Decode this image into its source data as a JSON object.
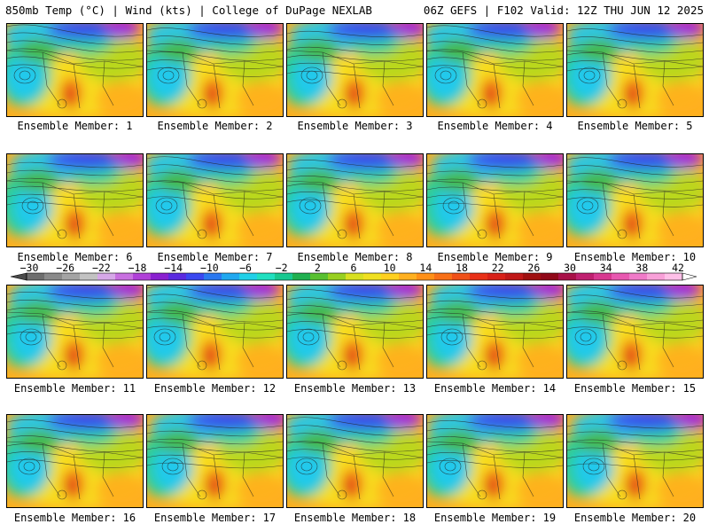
{
  "header": {
    "left_title": "850mb Temp (°C) | Wind (kts) | College of DuPage NEXLAB",
    "right_title": "06Z GEFS | F102 Valid: 12Z THU JUN 12 2025"
  },
  "colorbar": {
    "tick_labels": [
      "−30",
      "−26",
      "−22",
      "−18",
      "−14",
      "−10",
      "−6",
      "−2",
      "2",
      "6",
      "10",
      "14",
      "18",
      "22",
      "26",
      "30",
      "34",
      "38",
      "42"
    ],
    "segment_colors": [
      "#6e6e6e",
      "#8a8a8a",
      "#a4a4a4",
      "#c2c2c2",
      "#d6a8e8",
      "#c870e0",
      "#b040d8",
      "#8a20d0",
      "#5a2ae0",
      "#3a48f0",
      "#2a78f0",
      "#20a8f0",
      "#20d0e8",
      "#20e0c0",
      "#18c890",
      "#20b050",
      "#58c030",
      "#98d020",
      "#d8e020",
      "#f0e020",
      "#ffd020",
      "#ffb020",
      "#ff9018",
      "#f87018",
      "#f05018",
      "#e83018",
      "#d82018",
      "#c01818",
      "#a01010",
      "#900818",
      "#a81048",
      "#c02070",
      "#d83890",
      "#e858b0",
      "#f07ac8",
      "#f8a0d8",
      "#ffc0e8"
    ]
  },
  "map_colors": {
    "cold_pole": "#a020e0",
    "cold": "#3a48f0",
    "cool": "#20c8f0",
    "mild": "#20d0a0",
    "green": "#48b840",
    "yellowgreen": "#b8d820",
    "yellow": "#f8e020",
    "orange": "#ffb020",
    "hot": "#f06018",
    "very_hot": "#d82018",
    "contour": "#202020"
  },
  "panels": [
    {
      "label": "Ensemble Member: 1"
    },
    {
      "label": "Ensemble Member: 2"
    },
    {
      "label": "Ensemble Member: 3"
    },
    {
      "label": "Ensemble Member: 4"
    },
    {
      "label": "Ensemble Member: 5"
    },
    {
      "label": "Ensemble Member: 6"
    },
    {
      "label": "Ensemble Member: 7"
    },
    {
      "label": "Ensemble Member: 8"
    },
    {
      "label": "Ensemble Member: 9"
    },
    {
      "label": "Ensemble Member: 10"
    },
    {
      "label": "Ensemble Member: 11"
    },
    {
      "label": "Ensemble Member: 12"
    },
    {
      "label": "Ensemble Member: 13"
    },
    {
      "label": "Ensemble Member: 14"
    },
    {
      "label": "Ensemble Member: 15"
    },
    {
      "label": "Ensemble Member: 16"
    },
    {
      "label": "Ensemble Member: 17"
    },
    {
      "label": "Ensemble Member: 18"
    },
    {
      "label": "Ensemble Member: 19"
    },
    {
      "label": "Ensemble Member: 20"
    }
  ]
}
